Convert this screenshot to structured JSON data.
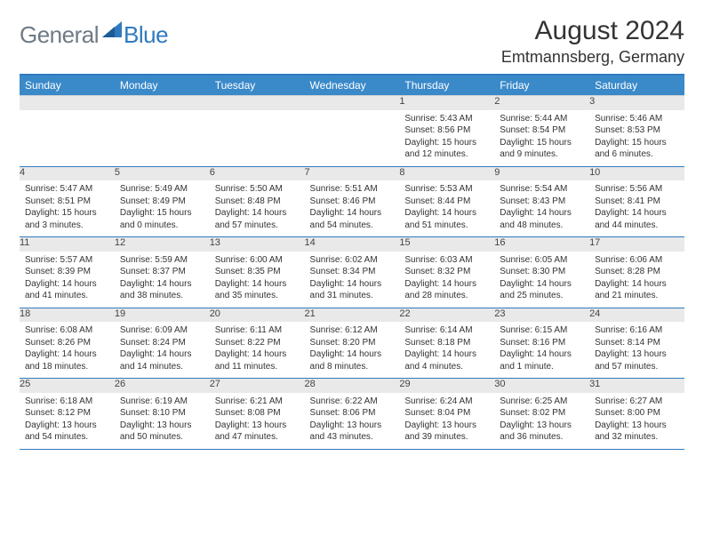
{
  "brand": {
    "part1": "General",
    "part2": "Blue"
  },
  "title": "August 2024",
  "location": "Emtmannsberg, Germany",
  "colors": {
    "header_bg": "#3a89c9",
    "border": "#2f7abf",
    "daynum_bg": "#e9e9e9",
    "text": "#333333",
    "logo_gray": "#6f7a85",
    "logo_blue": "#2f7abf"
  },
  "weekdays": [
    "Sunday",
    "Monday",
    "Tuesday",
    "Wednesday",
    "Thursday",
    "Friday",
    "Saturday"
  ],
  "weeks": [
    [
      null,
      null,
      null,
      null,
      {
        "n": "1",
        "sr": "Sunrise: 5:43 AM",
        "ss": "Sunset: 8:56 PM",
        "dl": "Daylight: 15 hours and 12 minutes."
      },
      {
        "n": "2",
        "sr": "Sunrise: 5:44 AM",
        "ss": "Sunset: 8:54 PM",
        "dl": "Daylight: 15 hours and 9 minutes."
      },
      {
        "n": "3",
        "sr": "Sunrise: 5:46 AM",
        "ss": "Sunset: 8:53 PM",
        "dl": "Daylight: 15 hours and 6 minutes."
      }
    ],
    [
      {
        "n": "4",
        "sr": "Sunrise: 5:47 AM",
        "ss": "Sunset: 8:51 PM",
        "dl": "Daylight: 15 hours and 3 minutes."
      },
      {
        "n": "5",
        "sr": "Sunrise: 5:49 AM",
        "ss": "Sunset: 8:49 PM",
        "dl": "Daylight: 15 hours and 0 minutes."
      },
      {
        "n": "6",
        "sr": "Sunrise: 5:50 AM",
        "ss": "Sunset: 8:48 PM",
        "dl": "Daylight: 14 hours and 57 minutes."
      },
      {
        "n": "7",
        "sr": "Sunrise: 5:51 AM",
        "ss": "Sunset: 8:46 PM",
        "dl": "Daylight: 14 hours and 54 minutes."
      },
      {
        "n": "8",
        "sr": "Sunrise: 5:53 AM",
        "ss": "Sunset: 8:44 PM",
        "dl": "Daylight: 14 hours and 51 minutes."
      },
      {
        "n": "9",
        "sr": "Sunrise: 5:54 AM",
        "ss": "Sunset: 8:43 PM",
        "dl": "Daylight: 14 hours and 48 minutes."
      },
      {
        "n": "10",
        "sr": "Sunrise: 5:56 AM",
        "ss": "Sunset: 8:41 PM",
        "dl": "Daylight: 14 hours and 44 minutes."
      }
    ],
    [
      {
        "n": "11",
        "sr": "Sunrise: 5:57 AM",
        "ss": "Sunset: 8:39 PM",
        "dl": "Daylight: 14 hours and 41 minutes."
      },
      {
        "n": "12",
        "sr": "Sunrise: 5:59 AM",
        "ss": "Sunset: 8:37 PM",
        "dl": "Daylight: 14 hours and 38 minutes."
      },
      {
        "n": "13",
        "sr": "Sunrise: 6:00 AM",
        "ss": "Sunset: 8:35 PM",
        "dl": "Daylight: 14 hours and 35 minutes."
      },
      {
        "n": "14",
        "sr": "Sunrise: 6:02 AM",
        "ss": "Sunset: 8:34 PM",
        "dl": "Daylight: 14 hours and 31 minutes."
      },
      {
        "n": "15",
        "sr": "Sunrise: 6:03 AM",
        "ss": "Sunset: 8:32 PM",
        "dl": "Daylight: 14 hours and 28 minutes."
      },
      {
        "n": "16",
        "sr": "Sunrise: 6:05 AM",
        "ss": "Sunset: 8:30 PM",
        "dl": "Daylight: 14 hours and 25 minutes."
      },
      {
        "n": "17",
        "sr": "Sunrise: 6:06 AM",
        "ss": "Sunset: 8:28 PM",
        "dl": "Daylight: 14 hours and 21 minutes."
      }
    ],
    [
      {
        "n": "18",
        "sr": "Sunrise: 6:08 AM",
        "ss": "Sunset: 8:26 PM",
        "dl": "Daylight: 14 hours and 18 minutes."
      },
      {
        "n": "19",
        "sr": "Sunrise: 6:09 AM",
        "ss": "Sunset: 8:24 PM",
        "dl": "Daylight: 14 hours and 14 minutes."
      },
      {
        "n": "20",
        "sr": "Sunrise: 6:11 AM",
        "ss": "Sunset: 8:22 PM",
        "dl": "Daylight: 14 hours and 11 minutes."
      },
      {
        "n": "21",
        "sr": "Sunrise: 6:12 AM",
        "ss": "Sunset: 8:20 PM",
        "dl": "Daylight: 14 hours and 8 minutes."
      },
      {
        "n": "22",
        "sr": "Sunrise: 6:14 AM",
        "ss": "Sunset: 8:18 PM",
        "dl": "Daylight: 14 hours and 4 minutes."
      },
      {
        "n": "23",
        "sr": "Sunrise: 6:15 AM",
        "ss": "Sunset: 8:16 PM",
        "dl": "Daylight: 14 hours and 1 minute."
      },
      {
        "n": "24",
        "sr": "Sunrise: 6:16 AM",
        "ss": "Sunset: 8:14 PM",
        "dl": "Daylight: 13 hours and 57 minutes."
      }
    ],
    [
      {
        "n": "25",
        "sr": "Sunrise: 6:18 AM",
        "ss": "Sunset: 8:12 PM",
        "dl": "Daylight: 13 hours and 54 minutes."
      },
      {
        "n": "26",
        "sr": "Sunrise: 6:19 AM",
        "ss": "Sunset: 8:10 PM",
        "dl": "Daylight: 13 hours and 50 minutes."
      },
      {
        "n": "27",
        "sr": "Sunrise: 6:21 AM",
        "ss": "Sunset: 8:08 PM",
        "dl": "Daylight: 13 hours and 47 minutes."
      },
      {
        "n": "28",
        "sr": "Sunrise: 6:22 AM",
        "ss": "Sunset: 8:06 PM",
        "dl": "Daylight: 13 hours and 43 minutes."
      },
      {
        "n": "29",
        "sr": "Sunrise: 6:24 AM",
        "ss": "Sunset: 8:04 PM",
        "dl": "Daylight: 13 hours and 39 minutes."
      },
      {
        "n": "30",
        "sr": "Sunrise: 6:25 AM",
        "ss": "Sunset: 8:02 PM",
        "dl": "Daylight: 13 hours and 36 minutes."
      },
      {
        "n": "31",
        "sr": "Sunrise: 6:27 AM",
        "ss": "Sunset: 8:00 PM",
        "dl": "Daylight: 13 hours and 32 minutes."
      }
    ]
  ]
}
